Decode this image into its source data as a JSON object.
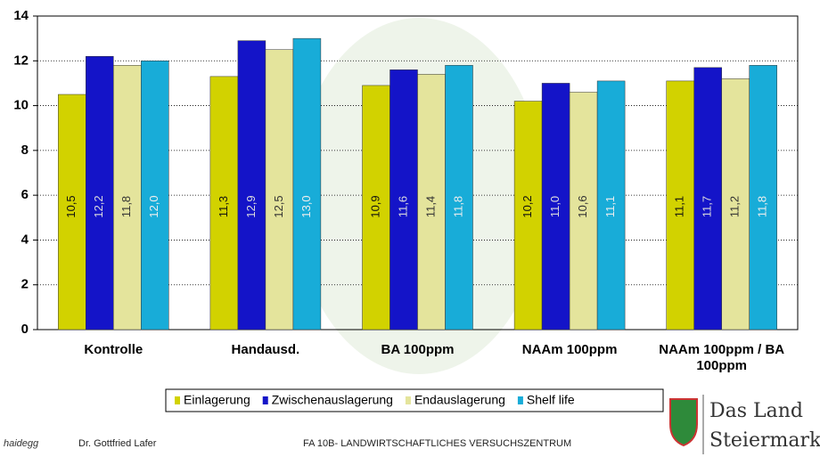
{
  "chart_data": {
    "type": "bar",
    "categories": [
      "Kontrolle",
      "Handausd.",
      "BA 100ppm",
      "NAAm 100ppm",
      "NAAm 100ppm / BA 100ppm"
    ],
    "series": [
      {
        "name": "Einlagerung",
        "color": "#d2d200",
        "values": [
          10.5,
          11.3,
          10.9,
          10.2,
          11.1
        ],
        "value_labels": [
          "10,5",
          "11,3",
          "10,9",
          "10,2",
          "11,1"
        ]
      },
      {
        "name": "Zwischenauslagerung",
        "color": "#1414c8",
        "values": [
          12.2,
          12.9,
          11.6,
          11.0,
          11.7
        ],
        "value_labels": [
          "12,2",
          "12,9",
          "11,6",
          "11,0",
          "11,7"
        ]
      },
      {
        "name": "Endauslagerung",
        "color": "#e4e49c",
        "values": [
          11.8,
          12.5,
          11.4,
          10.6,
          11.2
        ],
        "value_labels": [
          "11,8",
          "12,5",
          "11,4",
          "10,6",
          "11,2"
        ]
      },
      {
        "name": "Shelf life",
        "color": "#18acd8",
        "values": [
          12.0,
          13.0,
          11.8,
          11.1,
          11.8
        ],
        "value_labels": [
          "12,0",
          "13,0",
          "11,8",
          "11,1",
          "11,8"
        ]
      }
    ],
    "ylim": [
      0,
      14
    ],
    "yticks": [
      0,
      2,
      4,
      6,
      8,
      10,
      12,
      14
    ],
    "grid": true
  },
  "footer": {
    "logo_text": "haidegg",
    "author": "Dr. Gottfried Lafer",
    "institute": "FA 10B- LANDWIRTSCHAFTLICHES VERSUCHSZENTRUM",
    "brand_line1": "Das Land",
    "brand_line2": "Steiermark"
  }
}
